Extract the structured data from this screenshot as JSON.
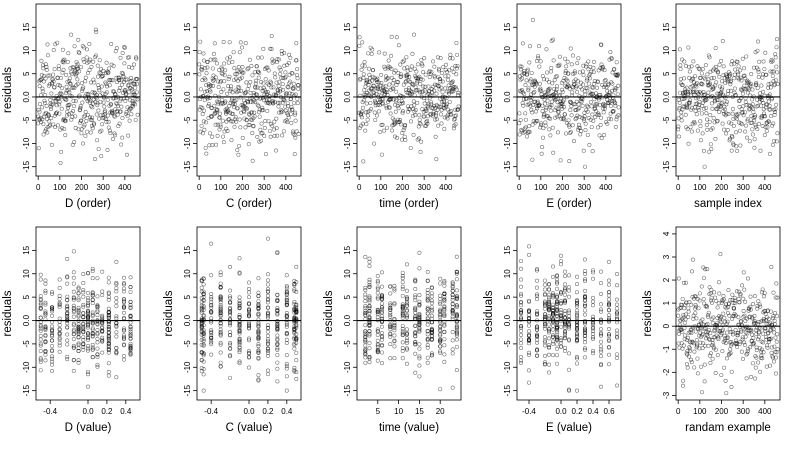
{
  "chart_data": [
    {
      "type": "scatter",
      "xlabel": "D (order)",
      "ylabel": "residuals",
      "xlim": [
        -10,
        470
      ],
      "ylim": [
        -17,
        20
      ],
      "xticks": [
        0,
        100,
        200,
        300,
        400
      ],
      "xtick_labels": [
        "0",
        "100",
        "200",
        "300",
        "400"
      ],
      "yticks": [
        -15,
        -10,
        -5,
        0,
        5,
        10,
        15
      ],
      "ytick_labels": [
        "-15",
        "-10",
        "-5",
        "0.0",
        "5",
        "10",
        "15"
      ],
      "hline": 0,
      "grid": false,
      "points": {
        "n": 460,
        "x_kind": "index",
        "y_spread": 5,
        "y_min": -15,
        "y_max": 18,
        "seed": 11
      }
    },
    {
      "type": "scatter",
      "xlabel": "C (order)",
      "ylabel": "residuals",
      "xlim": [
        -10,
        470
      ],
      "ylim": [
        -17,
        20
      ],
      "xticks": [
        0,
        100,
        200,
        300,
        400
      ],
      "xtick_labels": [
        "0",
        "100",
        "200",
        "300",
        "400"
      ],
      "yticks": [
        -15,
        -10,
        -5,
        0,
        5,
        10,
        15
      ],
      "ytick_labels": [
        "-15",
        "-10",
        "-5",
        "0.0",
        "5",
        "10",
        "15"
      ],
      "hline": 0,
      "grid": false,
      "points": {
        "n": 460,
        "x_kind": "index",
        "y_spread": 5,
        "y_min": -15,
        "y_max": 18,
        "seed": 12
      }
    },
    {
      "type": "scatter",
      "xlabel": "time (order)",
      "ylabel": "residuals",
      "xlim": [
        -10,
        470
      ],
      "ylim": [
        -17,
        20
      ],
      "xticks": [
        0,
        100,
        200,
        300,
        400
      ],
      "xtick_labels": [
        "0",
        "100",
        "200",
        "300",
        "400"
      ],
      "yticks": [
        -15,
        -10,
        -5,
        0,
        5,
        10,
        15
      ],
      "ytick_labels": [
        "-15",
        "-10",
        "-5",
        "0.0",
        "5",
        "10",
        "15"
      ],
      "hline": 0,
      "grid": false,
      "points": {
        "n": 460,
        "x_kind": "index",
        "y_spread": 5,
        "y_min": -15,
        "y_max": 18,
        "seed": 13
      }
    },
    {
      "type": "scatter",
      "xlabel": "E (order)",
      "ylabel": "residuals",
      "xlim": [
        -10,
        470
      ],
      "ylim": [
        -17,
        20
      ],
      "xticks": [
        0,
        100,
        200,
        300,
        400
      ],
      "xtick_labels": [
        "0",
        "100",
        "200",
        "300",
        "400"
      ],
      "yticks": [
        -15,
        -10,
        -5,
        0,
        5,
        10,
        15
      ],
      "ytick_labels": [
        "-15",
        "-10",
        "-5",
        "0.0",
        "5",
        "10",
        "15"
      ],
      "hline": 0,
      "grid": false,
      "points": {
        "n": 460,
        "x_kind": "index",
        "y_spread": 5,
        "y_min": -15,
        "y_max": 18,
        "seed": 14
      }
    },
    {
      "type": "scatter",
      "xlabel": "sample index",
      "ylabel": "residuals",
      "xlim": [
        -10,
        470
      ],
      "ylim": [
        -17,
        20
      ],
      "xticks": [
        0,
        100,
        200,
        300,
        400
      ],
      "xtick_labels": [
        "0",
        "100",
        "200",
        "300",
        "400"
      ],
      "yticks": [
        -15,
        -10,
        -5,
        0,
        5,
        10,
        15
      ],
      "ytick_labels": [
        "-15",
        "-10",
        "-5",
        "0.0",
        "5",
        "10",
        "15"
      ],
      "hline": 0,
      "grid": false,
      "points": {
        "n": 460,
        "x_kind": "index",
        "y_spread": 5,
        "y_min": -15,
        "y_max": 18,
        "seed": 15
      }
    },
    {
      "type": "scatter",
      "xlabel": "D (value)",
      "ylabel": "residuals",
      "xlim": [
        -0.55,
        0.55
      ],
      "ylim": [
        -17,
        20
      ],
      "xticks": [
        -0.4,
        0,
        0.2,
        0.4
      ],
      "xtick_labels": [
        "-0.4",
        "0.0",
        "0.2",
        "0.4"
      ],
      "yticks": [
        -15,
        -10,
        -5,
        0,
        5,
        10,
        15
      ],
      "ytick_labels": [
        "-15",
        "-10",
        "-5",
        "0.0",
        "5",
        "10",
        "15"
      ],
      "hline": 0,
      "grid": false,
      "points": {
        "n": 460,
        "x_kind": "levels",
        "x_levels": [
          -0.5,
          -0.45,
          -0.38,
          -0.3,
          -0.22,
          -0.15,
          -0.1,
          -0.05,
          0,
          0.05,
          0.1,
          0.15,
          0.22,
          0.3,
          0.38,
          0.45
        ],
        "y_spread": 5,
        "y_min": -15,
        "y_max": 18,
        "seed": 21
      }
    },
    {
      "type": "scatter",
      "xlabel": "C (value)",
      "ylabel": "residuals",
      "xlim": [
        -0.55,
        0.55
      ],
      "ylim": [
        -17,
        20
      ],
      "xticks": [
        -0.4,
        0,
        0.2,
        0.4
      ],
      "xtick_labels": [
        "-0.4",
        "0.0",
        "0.2",
        "0.4"
      ],
      "yticks": [
        -15,
        -10,
        -5,
        0,
        5,
        10,
        15
      ],
      "ytick_labels": [
        "-15",
        "-10",
        "-5",
        "0.0",
        "5",
        "10",
        "15"
      ],
      "hline": 0,
      "grid": false,
      "points": {
        "n": 460,
        "x_kind": "levels",
        "x_levels": [
          -0.5,
          -0.48,
          -0.4,
          -0.3,
          -0.2,
          -0.1,
          0,
          0.1,
          0.2,
          0.3,
          0.4,
          0.48,
          0.5
        ],
        "y_spread": 5,
        "y_min": -15,
        "y_max": 18,
        "seed": 22
      }
    },
    {
      "type": "scatter",
      "xlabel": "time (value)",
      "ylabel": "residuals",
      "xlim": [
        0,
        25
      ],
      "ylim": [
        -17,
        20
      ],
      "xticks": [
        5,
        10,
        15,
        20
      ],
      "xtick_labels": [
        "5",
        "10",
        "15",
        "20"
      ],
      "yticks": [
        -15,
        -10,
        -5,
        0,
        5,
        10,
        15
      ],
      "ytick_labels": [
        "-15",
        "-10",
        "-5",
        "0.0",
        "5",
        "10",
        "15"
      ],
      "hline": 0,
      "grid": false,
      "points": {
        "n": 460,
        "x_kind": "levels",
        "x_levels": [
          2,
          3,
          5,
          6,
          8,
          9,
          11,
          12,
          14,
          15,
          17,
          18,
          20,
          21,
          23,
          24
        ],
        "y_spread": 5,
        "y_min": -15,
        "y_max": 18,
        "seed": 23
      }
    },
    {
      "type": "scatter",
      "xlabel": "E (value)",
      "ylabel": "residuals",
      "xlim": [
        -0.55,
        0.75
      ],
      "ylim": [
        -17,
        20
      ],
      "xticks": [
        -0.4,
        0,
        0.2,
        0.4,
        0.6
      ],
      "xtick_labels": [
        "-0.4",
        "0.0",
        "0.2",
        "0.4",
        "0.6"
      ],
      "yticks": [
        -15,
        -10,
        -5,
        0,
        5,
        10,
        15
      ],
      "ytick_labels": [
        "-15",
        "-10",
        "-5",
        "0.0",
        "5",
        "10",
        "15"
      ],
      "hline": 0,
      "grid": false,
      "points": {
        "n": 460,
        "x_kind": "levels",
        "x_levels": [
          -0.5,
          -0.4,
          -0.3,
          -0.2,
          -0.15,
          -0.1,
          -0.05,
          0,
          0.05,
          0.1,
          0.2,
          0.3,
          0.4,
          0.5,
          0.6,
          0.7
        ],
        "y_spread": 5,
        "y_min": -15,
        "y_max": 18,
        "seed": 24
      }
    },
    {
      "type": "scatter",
      "xlabel": "randam example",
      "ylabel": "residuals",
      "xlim": [
        -10,
        470
      ],
      "ylim": [
        -3.2,
        4.3
      ],
      "xticks": [
        0,
        100,
        200,
        300,
        400
      ],
      "xtick_labels": [
        "0",
        "100",
        "200",
        "300",
        "400"
      ],
      "yticks": [
        -3,
        -2,
        -1,
        0,
        1,
        2,
        3,
        4
      ],
      "ytick_labels": [
        "-3",
        "-2",
        "-1",
        "0",
        "1",
        "2",
        "3",
        "4"
      ],
      "hline": 0,
      "grid": false,
      "points": {
        "n": 460,
        "x_kind": "index",
        "y_spread": 1,
        "y_min": -2.9,
        "y_max": 3.9,
        "seed": 31
      }
    }
  ]
}
